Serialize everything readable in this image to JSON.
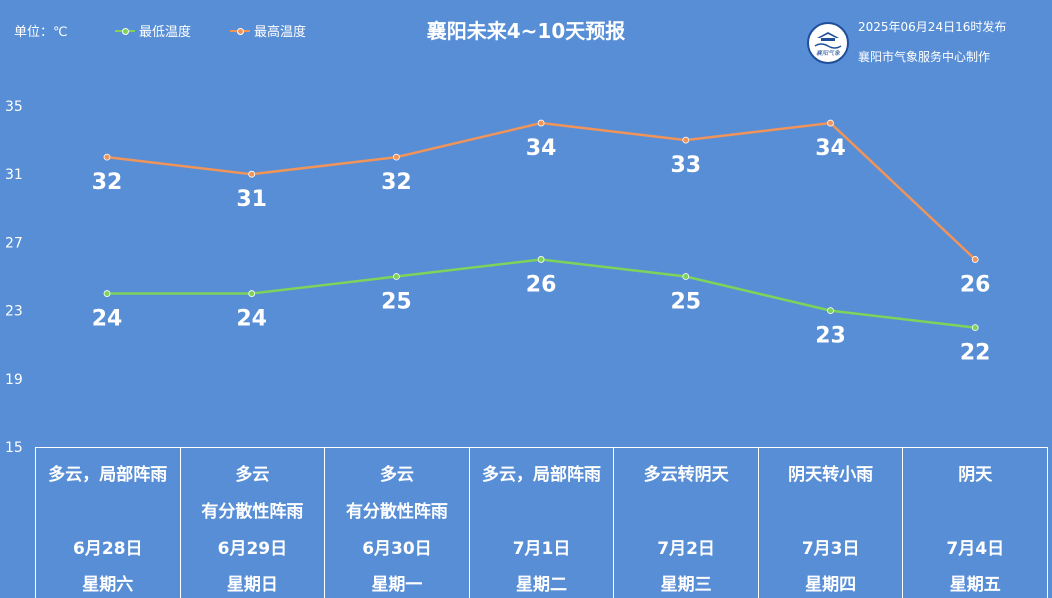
{
  "header": {
    "unit_label": "单位：℃",
    "title": "襄阳未来4~10天预报",
    "publish_time": "2025年06月24日16时发布",
    "producer": "襄阳市气象服务中心制作",
    "logo_text": "襄阳气象"
  },
  "legend": {
    "low_label": "最低温度",
    "high_label": "最高温度"
  },
  "colors": {
    "background": "#578ed6",
    "low_series": "#7ed35a",
    "high_series": "#f0945a",
    "text": "#ffffff"
  },
  "chart_data": {
    "type": "line",
    "title": "襄阳未来4~10天预报",
    "ylabel": "单位：℃",
    "xlabel": "",
    "ylim": [
      15,
      35
    ],
    "yticks": [
      15,
      19,
      23,
      27,
      31,
      35
    ],
    "grid": false,
    "legend_position": "top-left",
    "categories": [
      "6月28日",
      "6月29日",
      "6月30日",
      "7月1日",
      "7月2日",
      "7月3日",
      "7月4日"
    ],
    "series": [
      {
        "name": "最低温度",
        "values": [
          24,
          24,
          25,
          26,
          25,
          23,
          22
        ]
      },
      {
        "name": "最高温度",
        "values": [
          32,
          31,
          32,
          34,
          33,
          34,
          26
        ]
      }
    ]
  },
  "days": [
    {
      "weather_line1": "多云，局部阵雨",
      "weather_line2": "",
      "date": "6月28日",
      "weekday": "星期六"
    },
    {
      "weather_line1": "多云",
      "weather_line2": "有分散性阵雨",
      "date": "6月29日",
      "weekday": "星期日"
    },
    {
      "weather_line1": "多云",
      "weather_line2": "有分散性阵雨",
      "date": "6月30日",
      "weekday": "星期一"
    },
    {
      "weather_line1": "多云，局部阵雨",
      "weather_line2": "",
      "date": "7月1日",
      "weekday": "星期二"
    },
    {
      "weather_line1": "多云转阴天",
      "weather_line2": "",
      "date": "7月2日",
      "weekday": "星期三"
    },
    {
      "weather_line1": "阴天转小雨",
      "weather_line2": "",
      "date": "7月3日",
      "weekday": "星期四"
    },
    {
      "weather_line1": "阴天",
      "weather_line2": "",
      "date": "7月4日",
      "weekday": "星期五"
    }
  ]
}
